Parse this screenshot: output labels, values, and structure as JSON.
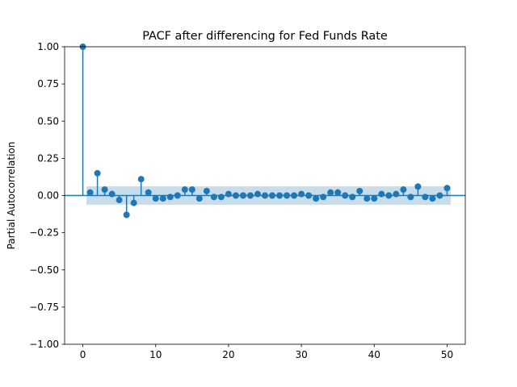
{
  "chart_data": {
    "type": "scatter",
    "subtype": "pacf-stem",
    "title": "PACF after differencing for Fed Funds Rate",
    "xlabel": "",
    "ylabel": "Partial Autocorrelation",
    "xlim": [
      -2.5,
      52.5
    ],
    "ylim": [
      -1.0,
      1.0
    ],
    "xticks": [
      0,
      10,
      20,
      30,
      40,
      50
    ],
    "yticks": [
      -1.0,
      -0.75,
      -0.5,
      -0.25,
      0.0,
      0.25,
      0.5,
      0.75,
      1.0
    ],
    "ytick_labels": [
      "−1.00",
      "−0.75",
      "−0.50",
      "−0.25",
      "0.00",
      "0.25",
      "0.50",
      "0.75",
      "1.00"
    ],
    "xtick_labels": [
      "0",
      "10",
      "20",
      "30",
      "40",
      "50"
    ],
    "grid": false,
    "confidence_band": 0.062,
    "colors": {
      "series": "#1f77b4",
      "band": "#aec7e8"
    },
    "lags": [
      0,
      1,
      2,
      3,
      4,
      5,
      6,
      7,
      8,
      9,
      10,
      11,
      12,
      13,
      14,
      15,
      16,
      17,
      18,
      19,
      20,
      21,
      22,
      23,
      24,
      25,
      26,
      27,
      28,
      29,
      30,
      31,
      32,
      33,
      34,
      35,
      36,
      37,
      38,
      39,
      40,
      41,
      42,
      43,
      44,
      45,
      46,
      47,
      48,
      49,
      50
    ],
    "values": [
      1.0,
      0.02,
      0.15,
      0.04,
      0.01,
      -0.03,
      -0.13,
      -0.05,
      0.11,
      0.02,
      -0.02,
      -0.02,
      -0.01,
      0.0,
      0.04,
      0.04,
      -0.02,
      0.03,
      -0.01,
      -0.01,
      0.01,
      0.0,
      0.0,
      0.0,
      0.01,
      0.0,
      0.0,
      0.0,
      0.0,
      0.0,
      0.01,
      0.0,
      -0.02,
      -0.01,
      0.02,
      0.02,
      0.0,
      -0.01,
      0.03,
      -0.02,
      -0.02,
      0.01,
      0.0,
      0.01,
      0.04,
      -0.01,
      0.06,
      -0.01,
      -0.02,
      0.0,
      0.05
    ]
  }
}
